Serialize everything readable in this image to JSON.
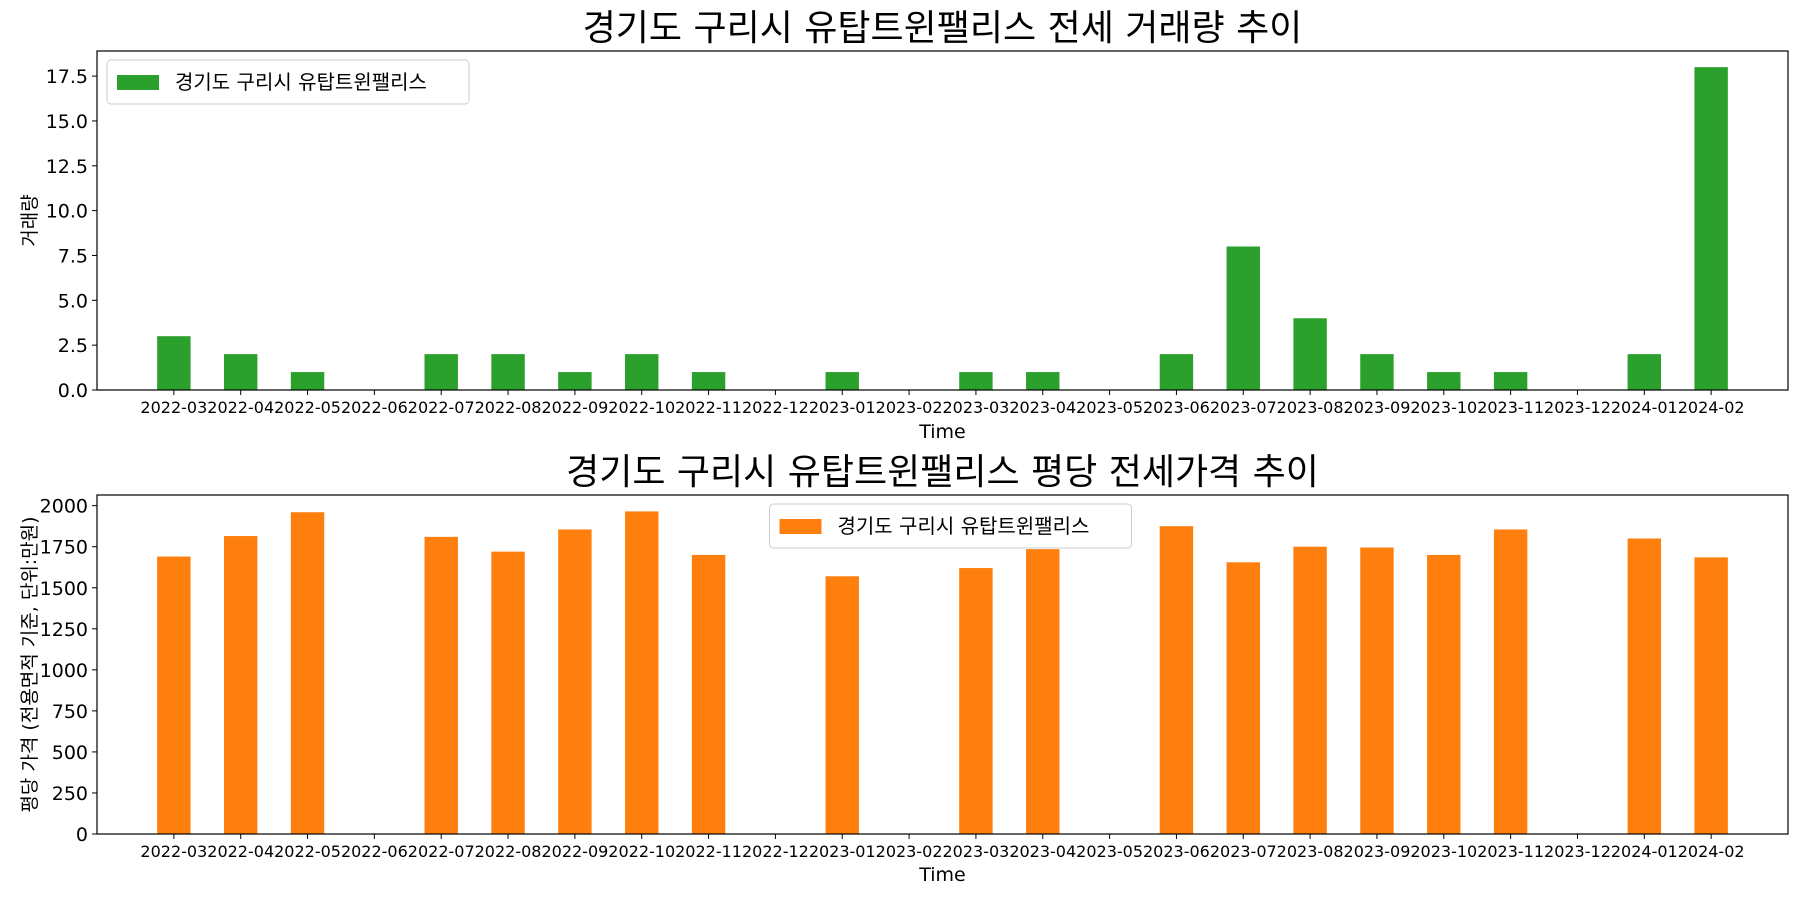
{
  "chart_data": [
    {
      "type": "bar",
      "title": "경기도 구리시 유탑트윈팰리스 전세 거래량 추이",
      "xlabel": "Time",
      "ylabel": "거래량",
      "color": "#2ca02c",
      "legend": {
        "placement": "upper left"
      },
      "grid": false,
      "ylim": [
        0,
        18.9
      ],
      "yticks": [
        "0.0",
        "2.5",
        "5.0",
        "7.5",
        "10.0",
        "12.5",
        "15.0",
        "17.5"
      ],
      "categories": [
        "2022-03",
        "2022-04",
        "2022-05",
        "2022-06",
        "2022-07",
        "2022-08",
        "2022-09",
        "2022-10",
        "2022-11",
        "2022-12",
        "2023-01",
        "2023-02",
        "2023-03",
        "2023-04",
        "2023-05",
        "2023-06",
        "2023-07",
        "2023-08",
        "2023-09",
        "2023-10",
        "2023-11",
        "2023-12",
        "2024-01",
        "2024-02"
      ],
      "series": [
        {
          "name": "경기도 구리시 유탑트윈팰리스",
          "values": [
            3,
            2,
            1,
            0,
            2,
            2,
            1,
            2,
            1,
            0,
            1,
            0,
            1,
            1,
            0,
            2,
            8,
            4,
            2,
            1,
            1,
            0,
            2,
            18
          ]
        }
      ]
    },
    {
      "type": "bar",
      "title": "경기도 구리시 유탑트윈팰리스 평당 전세가격 추이",
      "xlabel": "Time",
      "ylabel": "평당 가격 (전용면적 기준, 단위:만원)",
      "color": "#ff7f0e",
      "legend": {
        "placement": "upper center"
      },
      "grid": false,
      "ylim": [
        0,
        2065
      ],
      "yticks": [
        "0",
        "250",
        "500",
        "750",
        "1000",
        "1250",
        "1500",
        "1750",
        "2000"
      ],
      "categories": [
        "2022-03",
        "2022-04",
        "2022-05",
        "2022-06",
        "2022-07",
        "2022-08",
        "2022-09",
        "2022-10",
        "2022-11",
        "2022-12",
        "2023-01",
        "2023-02",
        "2023-03",
        "2023-04",
        "2023-05",
        "2023-06",
        "2023-07",
        "2023-08",
        "2023-09",
        "2023-10",
        "2023-11",
        "2023-12",
        "2024-01",
        "2024-02"
      ],
      "series": [
        {
          "name": "경기도 구리시 유탑트윈팰리스",
          "values": [
            1690,
            1815,
            1960,
            null,
            1810,
            1720,
            1855,
            1965,
            1700,
            null,
            1570,
            null,
            1620,
            1735,
            null,
            1875,
            1655,
            1750,
            1745,
            1700,
            1855,
            null,
            1800,
            1685
          ]
        }
      ]
    }
  ]
}
